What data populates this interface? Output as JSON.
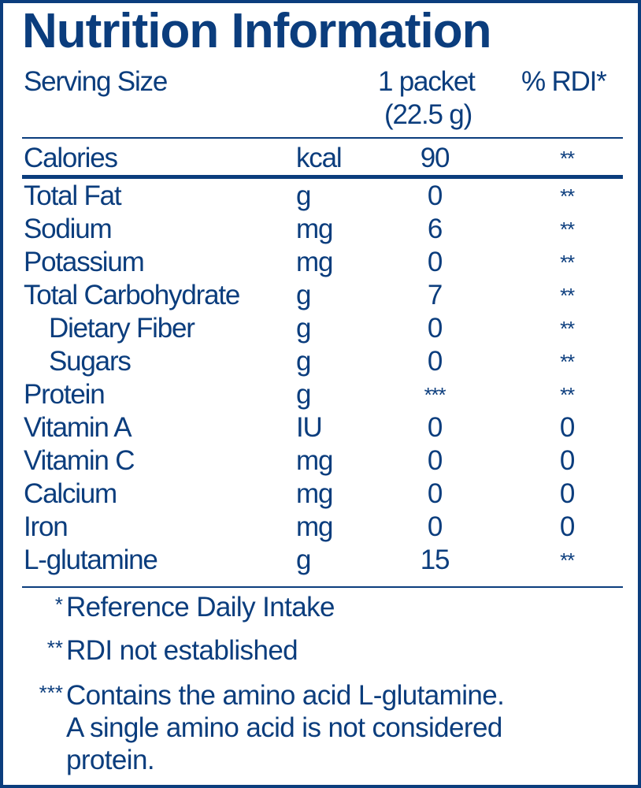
{
  "title": "Nutrition Information",
  "header": {
    "serving_label": "Serving Size",
    "serving_amount_line1": "1 packet",
    "serving_amount_line2": "(22.5 g)",
    "rdi_label": "% RDI*"
  },
  "calories": {
    "name": "Calories",
    "unit": "kcal",
    "amount": "90",
    "rdi": "**"
  },
  "nutrients": [
    {
      "name": "Total Fat",
      "unit": "g",
      "amount": "0",
      "rdi": "**",
      "indent": false
    },
    {
      "name": "Sodium",
      "unit": "mg",
      "amount": "6",
      "rdi": "**",
      "indent": false
    },
    {
      "name": "Potassium",
      "unit": "mg",
      "amount": "0",
      "rdi": "**",
      "indent": false
    },
    {
      "name": "Total Carbohydrate",
      "unit": "g",
      "amount": "7",
      "rdi": "**",
      "indent": false
    },
    {
      "name": "Dietary Fiber",
      "unit": "g",
      "amount": "0",
      "rdi": "**",
      "indent": true
    },
    {
      "name": "Sugars",
      "unit": "g",
      "amount": "0",
      "rdi": "**",
      "indent": true
    },
    {
      "name": "Protein",
      "unit": "g",
      "amount": "***",
      "rdi": "**",
      "indent": false
    },
    {
      "name": "Vitamin A",
      "unit": "IU",
      "amount": "0",
      "rdi": "0",
      "indent": false
    },
    {
      "name": "Vitamin C",
      "unit": "mg",
      "amount": "0",
      "rdi": "0",
      "indent": false
    },
    {
      "name": "Calcium",
      "unit": "mg",
      "amount": "0",
      "rdi": "0",
      "indent": false
    },
    {
      "name": "Iron",
      "unit": "mg",
      "amount": "0",
      "rdi": "0",
      "indent": false
    },
    {
      "name": "L-glutamine",
      "unit": "g",
      "amount": "15",
      "rdi": "**",
      "indent": false
    }
  ],
  "footnotes": [
    {
      "mark": "*",
      "lines": [
        "Reference Daily Intake"
      ]
    },
    {
      "mark": "**",
      "lines": [
        "RDI not established"
      ]
    },
    {
      "mark": "***",
      "lines": [
        "Contains the amino acid L-glutamine.",
        "A single amino acid is not considered",
        "protein."
      ]
    }
  ],
  "colors": {
    "text": "#0b3d7d",
    "background": "#ffffff"
  }
}
